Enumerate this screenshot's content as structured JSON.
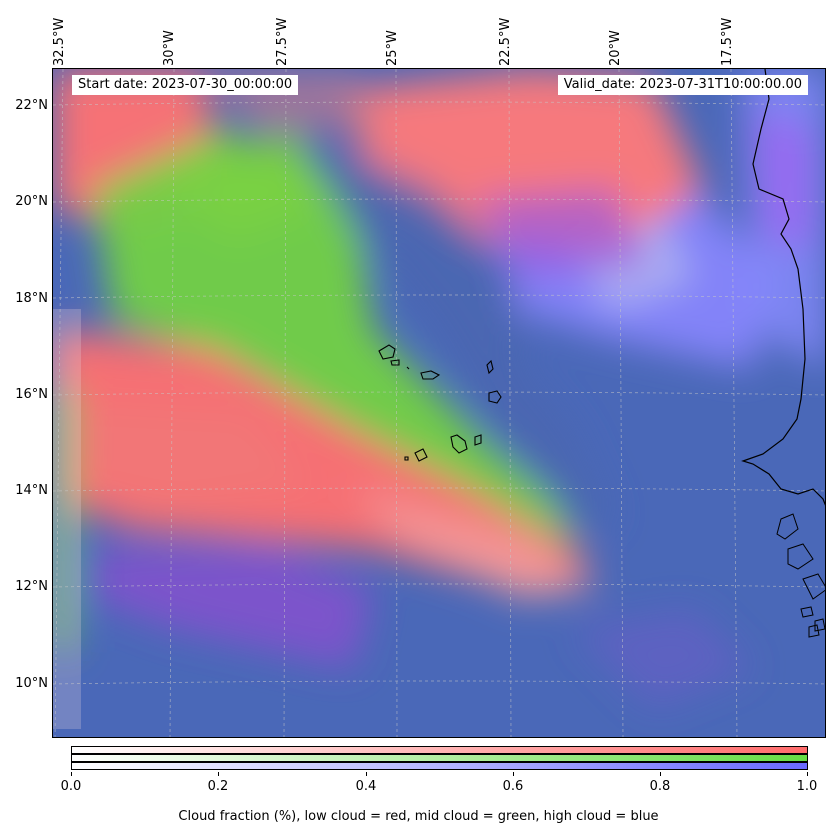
{
  "header": {
    "start_date": "Start date: 2023-07-30_00:00:00",
    "valid_date": "Valid_date: 2023-07-31T10:00:00.00"
  },
  "lon_labels": [
    "32.5°W",
    "30°W",
    "27.5°W",
    "25°W",
    "22.5°W",
    "20°W",
    "17.5°W"
  ],
  "lat_labels": [
    "22°N",
    "20°N",
    "18°N",
    "16°N",
    "14°N",
    "12°N",
    "10°N"
  ],
  "colorbar": {
    "ticks": [
      "0.0",
      "0.2",
      "0.4",
      "0.6",
      "0.8",
      "1.0"
    ],
    "caption": "Cloud fraction (%), low cloud = red, mid cloud = green, high cloud = blue",
    "colors": {
      "low": "#ff6b6b",
      "mid": "#66dd44",
      "high": "#6a6aff"
    }
  },
  "map": {
    "background": "#4a68b8",
    "coastline_color": "#000000",
    "gridline_color": "#c8c8c8"
  }
}
